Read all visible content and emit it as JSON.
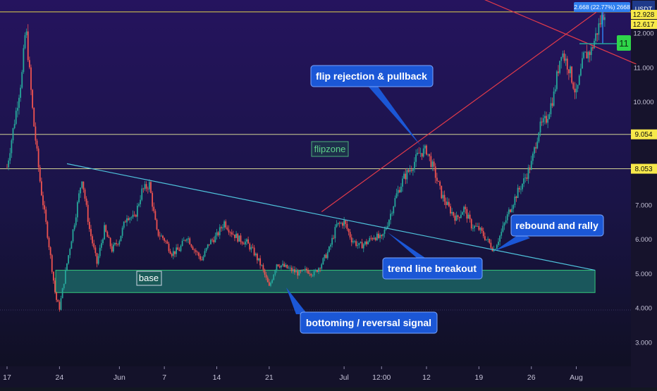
{
  "chart_data": {
    "type": "candlestick",
    "instrument_unit": "USDT",
    "y_axis": {
      "min": 2.2,
      "max": 13.5,
      "ticks": [
        "3.000",
        "4.000",
        "5.000",
        "6.000",
        "7.000",
        "8.000",
        "9.000",
        "10.000",
        "11.000",
        "12.000"
      ]
    },
    "x_axis": {
      "labels": [
        {
          "label": "17",
          "day": 0
        },
        {
          "label": "24",
          "day": 7
        },
        {
          "label": "Jun",
          "day": 15
        },
        {
          "label": "7",
          "day": 21
        },
        {
          "label": "14",
          "day": 28
        },
        {
          "label": "21",
          "day": 35
        },
        {
          "label": "Jul",
          "day": 45
        },
        {
          "label": "12:00",
          "day": 50
        },
        {
          "label": "12",
          "day": 56
        },
        {
          "label": "19",
          "day": 63
        },
        {
          "label": "26",
          "day": 70
        },
        {
          "label": "Aug",
          "day": 76
        }
      ]
    },
    "price_path": [
      [
        0,
        8.1
      ],
      [
        2,
        10.8
      ],
      [
        2.5,
        12.2
      ],
      [
        3.5,
        9.5
      ],
      [
        4.5,
        7.5
      ],
      [
        5.5,
        6.0
      ],
      [
        6.5,
        4.3
      ],
      [
        7,
        4.0
      ],
      [
        8,
        5.3
      ],
      [
        9,
        6.5
      ],
      [
        10,
        7.8
      ],
      [
        11,
        6.3
      ],
      [
        12,
        5.3
      ],
      [
        13,
        6.3
      ],
      [
        14,
        5.7
      ],
      [
        15,
        6.0
      ],
      [
        16,
        6.7
      ],
      [
        17,
        6.6
      ],
      [
        18,
        7.4
      ],
      [
        19,
        7.6
      ],
      [
        20,
        6.2
      ],
      [
        21,
        6.0
      ],
      [
        22,
        5.6
      ],
      [
        23,
        5.7
      ],
      [
        24,
        6.1
      ],
      [
        25,
        5.7
      ],
      [
        26,
        5.4
      ],
      [
        27,
        5.9
      ],
      [
        28,
        6.1
      ],
      [
        29,
        6.5
      ],
      [
        30,
        6.2
      ],
      [
        31,
        6.0
      ],
      [
        32,
        5.9
      ],
      [
        33,
        5.6
      ],
      [
        34,
        5.2
      ],
      [
        35,
        4.6
      ],
      [
        36,
        5.3
      ],
      [
        37,
        5.2
      ],
      [
        38,
        5.1
      ],
      [
        39,
        5.0
      ],
      [
        40,
        5.1
      ],
      [
        41,
        5.0
      ],
      [
        42,
        5.3
      ],
      [
        43,
        5.7
      ],
      [
        44,
        6.4
      ],
      [
        45,
        6.5
      ],
      [
        46,
        6.0
      ],
      [
        47,
        5.8
      ],
      [
        48,
        5.9
      ],
      [
        49,
        6.1
      ],
      [
        50,
        6.0
      ],
      [
        51,
        6.6
      ],
      [
        52,
        7.3
      ],
      [
        53,
        7.8
      ],
      [
        54,
        8.1
      ],
      [
        55,
        8.5
      ],
      [
        56,
        8.6
      ],
      [
        57,
        8.0
      ],
      [
        58,
        7.3
      ],
      [
        59,
        6.9
      ],
      [
        60,
        6.6
      ],
      [
        61,
        6.9
      ],
      [
        62,
        6.4
      ],
      [
        63,
        6.3
      ],
      [
        64,
        6.0
      ],
      [
        65,
        5.7
      ],
      [
        66,
        6.2
      ],
      [
        67,
        6.8
      ],
      [
        68,
        7.3
      ],
      [
        69,
        7.7
      ],
      [
        70,
        8.2
      ],
      [
        71,
        9.2
      ],
      [
        72,
        9.5
      ],
      [
        73,
        10.2
      ],
      [
        74,
        11.5
      ],
      [
        75,
        11.0
      ],
      [
        76,
        10.2
      ],
      [
        77,
        11.3
      ],
      [
        78,
        11.5
      ],
      [
        79,
        12.2
      ],
      [
        80,
        12.8
      ]
    ],
    "horizontal_levels": [
      {
        "value": 9.054,
        "label": "9.054",
        "color": "#e4e69b"
      },
      {
        "value": 8.053,
        "label": "8.053",
        "color": "#e4e69b"
      },
      {
        "value": 12.617,
        "label": "12.617",
        "color": "#f7e94a"
      },
      {
        "value": 13.0,
        "label": "",
        "color": "#e9d7f0"
      }
    ],
    "price_labels": [
      {
        "value": 12.928,
        "label": "12.928"
      },
      {
        "value": 12.617,
        "label": "12.617"
      }
    ],
    "measure_tag": "2.668 (22.77%) 2668",
    "current_tag": "11",
    "base_zone": {
      "top": 5.1,
      "bottom": 4.45,
      "day_start": 6.5,
      "day_end": 78.5
    },
    "trend_lines": [
      {
        "name": "descending",
        "color": "#4fc3dc",
        "from": [
          8,
          8.2
        ],
        "to": [
          78.5,
          5.1
        ]
      },
      {
        "name": "ascending",
        "color": "#e03a4a",
        "from": [
          42,
          6.8
        ],
        "to": [
          80.5,
          12.9
        ]
      },
      {
        "name": "upper-resistance",
        "color": "#e03a4a",
        "from": [
          57,
          13.6
        ],
        "to": [
          84,
          11.1
        ]
      }
    ],
    "annotations": [
      {
        "text": "flip rejection & pullback",
        "style": "callout"
      },
      {
        "text": "flipzone",
        "style": "tag"
      },
      {
        "text": "rebound and rally",
        "style": "callout"
      },
      {
        "text": "trend line breakout",
        "style": "callout"
      },
      {
        "text": "base",
        "style": "tag"
      },
      {
        "text": "bottoming / reversal signal",
        "style": "callout"
      }
    ],
    "colors": {
      "up": "#26a69a",
      "down": "#ef5350",
      "callout": "#1b57d6",
      "zone": "#1c6f6a",
      "zone_border": "#34c77b"
    }
  }
}
